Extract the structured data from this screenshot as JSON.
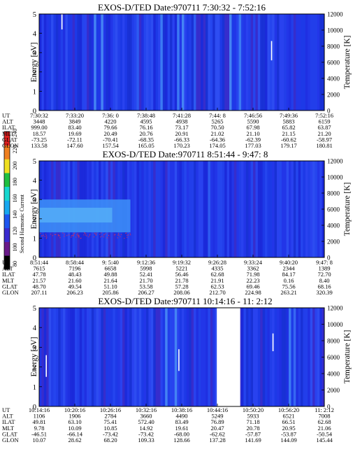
{
  "colorbar": {
    "title": "Second Harmonic Current",
    "ticks": [
      "80",
      "100",
      "120",
      "140",
      "160",
      "180",
      "200",
      "220",
      "240"
    ],
    "colors": [
      "#000000",
      "#6a1a8a",
      "#3a2bd0",
      "#1e56f0",
      "#18a8f0",
      "#18d8d0",
      "#20c040",
      "#f0e020",
      "#f08020",
      "#e02020"
    ]
  },
  "panels": [
    {
      "title": "EXOS-D/TED   Date:970711  7:30:32 - 7:52:16",
      "yleft": "Energy [eV]",
      "yright": "Temperature [K]",
      "row_labels": [
        "UT",
        "ALT",
        "ILAT",
        "MLT",
        "GLAT",
        "GLON"
      ],
      "columns": [
        [
          "7:30:32",
          "3448",
          "999.00",
          "18.57",
          "-73.25",
          "133.58"
        ],
        [
          "7:33:20",
          "3849",
          "83.40",
          "19.69",
          "-72.11",
          "147.60"
        ],
        [
          "7:36: 0",
          "4220",
          "79.66",
          "20.49",
          "-70.41",
          "157.54"
        ],
        [
          "7:38:48",
          "4595",
          "76.16",
          "20.76",
          "-68.35",
          "165.05"
        ],
        [
          "7:41:28",
          "4938",
          "73.17",
          "20.91",
          "-66.33",
          "170.23"
        ],
        [
          "7:44: 8",
          "5265",
          "70.50",
          "21.02",
          "-64.36",
          "174.05"
        ],
        [
          "7:46:56",
          "5590",
          "67.98",
          "21.10",
          "-62.39",
          "177.03"
        ],
        [
          "7:49:36",
          "5883",
          "65.82",
          "21.15",
          "-60.62",
          "179.17"
        ],
        [
          "7:52:16",
          "6159",
          "63.87",
          "21.20",
          "-58.97",
          "180.81"
        ]
      ]
    },
    {
      "title": "EXOS-D/TED   Date:970711  8:51:44 - 9:47: 8",
      "yleft": "Energy [eV]",
      "yright": "Temperature [K]",
      "row_labels": [
        "UT",
        "ALT",
        "ILAT",
        "MLT",
        "GLAT",
        "GLON"
      ],
      "columns": [
        [
          "8:51:44",
          "7615",
          "47.78",
          "21.57",
          "48.70",
          "207.11"
        ],
        [
          "8:58:44",
          "7196",
          "48.43",
          "21.60",
          "49.54",
          "206.23"
        ],
        [
          "9: 5:40",
          "6658",
          "49.88",
          "21.64",
          "51.10",
          "205.86"
        ],
        [
          "9:12:36",
          "5998",
          "52.41",
          "21.70",
          "53.58",
          "206.27"
        ],
        [
          "9:19:32",
          "5221",
          "56.46",
          "21.78",
          "57.28",
          "208.06"
        ],
        [
          "9:26:28",
          "4335",
          "62.68",
          "21.91",
          "62.53",
          "212.70"
        ],
        [
          "9:33:24",
          "3362",
          "71.98",
          "22.23",
          "69.46",
          "224.98"
        ],
        [
          "9:40:20",
          "2344",
          "84.17",
          "0.16",
          "75.56",
          "263.21"
        ],
        [
          "9:47: 8",
          "1389",
          "72.70",
          "8.40",
          "68.16",
          "320.39"
        ]
      ]
    },
    {
      "title": "EXOS-D/TED   Date:970711  10:14:16 - 11: 2:12",
      "yleft": "Energy [eV]",
      "yright": "Temperature [K]",
      "row_labels": [
        "UT",
        "ALT",
        "ILAT",
        "MLT",
        "GLAT",
        "GLON"
      ],
      "columns": [
        [
          "10:14:16",
          "1106",
          "49.81",
          "9.78",
          "-46.51",
          "10.07"
        ],
        [
          "10:20:16",
          "1906",
          "63.10",
          "10.09",
          "-66.14",
          "28.62"
        ],
        [
          "10:26:16",
          "2784",
          "75.41",
          "10.85",
          "-73.42",
          "68.20"
        ],
        [
          "10:32:16",
          "3660",
          "572.40",
          "14.92",
          "-73.42",
          "109.33"
        ],
        [
          "10:38:16",
          "4490",
          "83.49",
          "19.61",
          "-68.00",
          "128.66"
        ],
        [
          "10:44:16",
          "5249",
          "76.89",
          "20.47",
          "-62.62",
          "137.28"
        ],
        [
          "10:50:20",
          "5933",
          "71.18",
          "20.78",
          "-57.87",
          "141.69"
        ],
        [
          "10:56:20",
          "6521",
          "66.51",
          "20.95",
          "-53.87",
          "144.09"
        ],
        [
          "11: 2:12",
          "7008",
          "62.68",
          "21.06",
          "-50.54",
          "145.44"
        ]
      ]
    }
  ],
  "chart_data": [
    {
      "type": "heatmap",
      "title": "EXOS-D/TED   Date:970711  7:30:32 - 7:52:16",
      "xlabel": "UT",
      "ylabel": "Energy [eV]",
      "ylabel_right": "Temperature [K]",
      "x_ticks": [
        "7:30:32",
        "7:33:20",
        "7:36: 0",
        "7:38:48",
        "7:41:28",
        "7:44: 8",
        "7:46:56",
        "7:49:36",
        "7:52:16"
      ],
      "ylim": [
        0,
        5
      ],
      "yticks": [
        0,
        1,
        2,
        3,
        4,
        5
      ],
      "ylim_right": [
        0,
        12000
      ],
      "yticks_right": [
        0,
        2000,
        4000,
        6000,
        8000,
        10000,
        12000
      ],
      "band": null,
      "gap": null,
      "temperature_marks": [
        {
          "t": 0.08,
          "y0": 4.2,
          "y1": 5.1
        },
        {
          "t": 0.815,
          "y0": 2.6,
          "y1": 3.6
        }
      ]
    },
    {
      "type": "heatmap",
      "title": "EXOS-D/TED   Date:970711  8:51:44 - 9:47: 8",
      "xlabel": "UT",
      "ylabel": "Energy [eV]",
      "ylabel_right": "Temperature [K]",
      "x_ticks": [
        "8:51:44",
        "8:58:44",
        "9: 5:40",
        "9:12:36",
        "9:19:32",
        "9:26:28",
        "9:33:24",
        "9:40:20",
        "9:47: 8"
      ],
      "ylim": [
        0,
        5
      ],
      "yticks": [
        0,
        1,
        2,
        3,
        4,
        5
      ],
      "ylim_right": [
        0,
        12000
      ],
      "yticks_right": [
        0,
        2000,
        4000,
        6000,
        8000,
        10000,
        12000
      ],
      "band": {
        "t0": 0.0,
        "t1": 0.32,
        "ylo": 1.3,
        "yhi": 3.0
      },
      "gap": null,
      "temperature_marks": []
    },
    {
      "type": "heatmap",
      "title": "EXOS-D/TED   Date:970711  10:14:16 - 11: 2:12",
      "xlabel": "UT",
      "ylabel": "Energy [eV]",
      "ylabel_right": "Temperature [K]",
      "x_ticks": [
        "10:14:16",
        "10:20:16",
        "10:26:16",
        "10:32:16",
        "10:38:16",
        "10:44:16",
        "10:50:20",
        "10:56:20",
        "11: 2:12"
      ],
      "ylim": [
        0,
        5
      ],
      "yticks": [
        0,
        1,
        2,
        3,
        4,
        5
      ],
      "ylim_right": [
        0,
        12000
      ],
      "yticks_right": [
        0,
        2000,
        4000,
        6000,
        8000,
        10000,
        12000
      ],
      "band": null,
      "gap": {
        "t0": 0.623,
        "t1": 0.705
      },
      "temperature_marks": [
        {
          "t": 0.025,
          "y0": 1.5,
          "y1": 2.6
        },
        {
          "t": 0.49,
          "y0": 1.8,
          "y1": 2.9
        },
        {
          "t": 0.82,
          "y0": 2.8,
          "y1": 3.7
        }
      ]
    }
  ]
}
